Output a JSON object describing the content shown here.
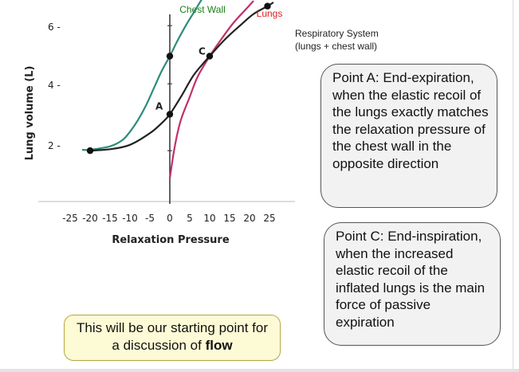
{
  "chart_data": {
    "type": "line",
    "xlabel": "Relaxation Pressure",
    "ylabel": "Lung volume (L)",
    "xlim": [
      -27,
      27
    ],
    "ylim": [
      0.5,
      7.5
    ],
    "x_ticks": [
      "-25",
      "-20",
      "-15",
      "-10",
      "-5",
      "0",
      "5",
      "10",
      "15",
      "20",
      "25"
    ],
    "y_ticks": [
      "2",
      "4",
      "6"
    ],
    "series": [
      {
        "name": "Chest Wall",
        "color": "#2e8b7a",
        "label_color": "#1a7f1a",
        "points": [
          [
            -22,
            1.78
          ],
          [
            -20,
            1.78
          ],
          [
            -15,
            1.9
          ],
          [
            -12,
            2.1
          ],
          [
            -10,
            2.4
          ],
          [
            -8,
            2.8
          ],
          [
            -6,
            3.3
          ],
          [
            -4,
            3.9
          ],
          [
            -2,
            4.5
          ],
          [
            0,
            5.0
          ],
          [
            2,
            5.55
          ],
          [
            4,
            6.05
          ],
          [
            6,
            6.5
          ],
          [
            8,
            6.95
          ],
          [
            9.5,
            7.25
          ]
        ]
      },
      {
        "name": "Lungs",
        "color": "#c2306a",
        "label_color": "#e02020",
        "points": [
          [
            0,
            0.8
          ],
          [
            1,
            1.7
          ],
          [
            2,
            2.4
          ],
          [
            3,
            2.9
          ],
          [
            5,
            3.6
          ],
          [
            7,
            4.3
          ],
          [
            10,
            5.0
          ],
          [
            13,
            5.6
          ],
          [
            16,
            6.15
          ],
          [
            19,
            6.6
          ],
          [
            21,
            6.9
          ]
        ]
      },
      {
        "name": "Respiratory System",
        "name_line2": "(lungs + chest wall)",
        "color": "#222222",
        "label_color": "#222222",
        "points": [
          [
            -20,
            1.75
          ],
          [
            -15,
            1.8
          ],
          [
            -10,
            1.95
          ],
          [
            -5,
            2.35
          ],
          [
            -2,
            2.7
          ],
          [
            0,
            3.0
          ],
          [
            3,
            3.65
          ],
          [
            6,
            4.35
          ],
          [
            10,
            5.0
          ],
          [
            14,
            5.6
          ],
          [
            18,
            6.1
          ],
          [
            21,
            6.45
          ],
          [
            24.5,
            6.72
          ],
          [
            26,
            6.85
          ]
        ]
      }
    ],
    "markers": [
      {
        "x": -20,
        "y": 1.75,
        "label": ""
      },
      {
        "x": 0,
        "y": 3.0,
        "label": "A"
      },
      {
        "x": 0,
        "y": 5.0,
        "label": ""
      },
      {
        "x": 10,
        "y": 5.0,
        "label": "C"
      },
      {
        "x": 24.5,
        "y": 6.72,
        "label": ""
      }
    ]
  },
  "callouts": {
    "point_a": "Point A:  End-expiration, when the elastic recoil of the lungs exactly matches the relaxation pressure of the chest wall in the opposite direction",
    "point_c": "Point C:  End-inspiration, when the increased elastic recoil of the inflated lungs is the main force of passive expiration"
  },
  "footnote": {
    "text": "This will be our starting point for a discussion of",
    "bold": "flow"
  }
}
